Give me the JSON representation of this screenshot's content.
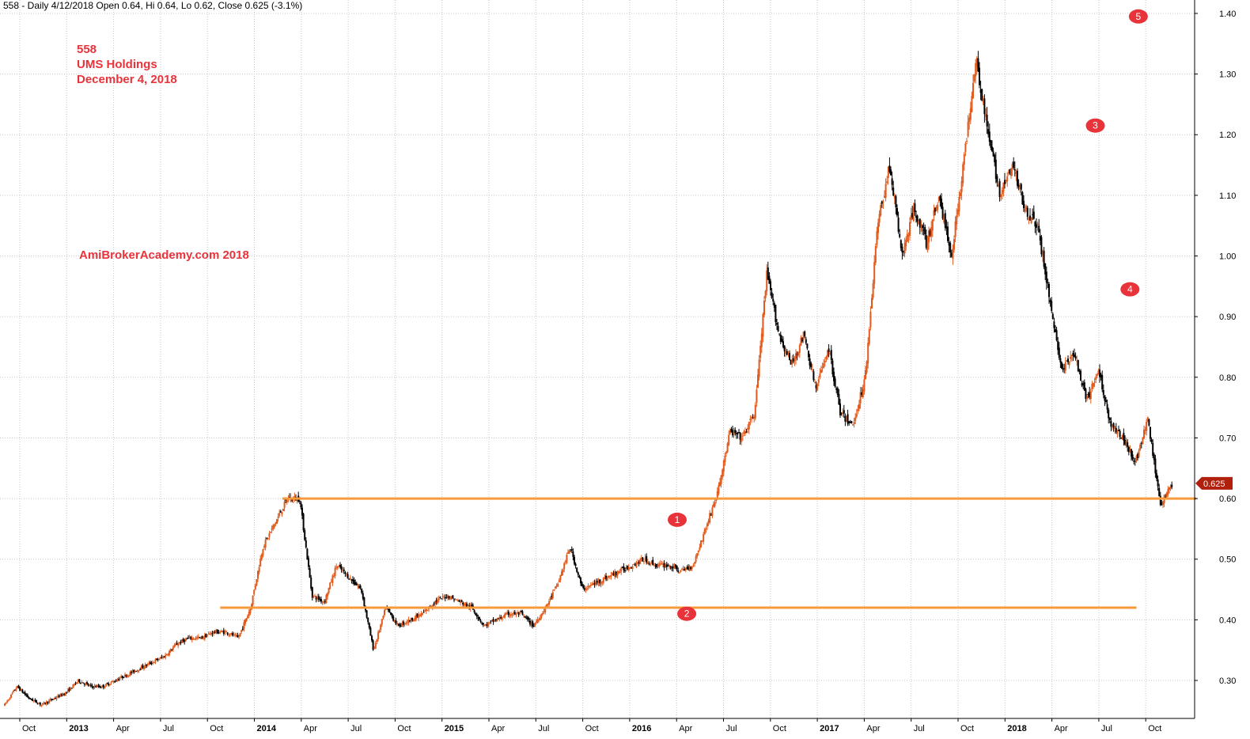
{
  "header": "558 - Daily 4/12/2018 Open 0.64, Hi 0.64, Lo 0.62, Close 0.625 (-3.1%)",
  "annotations": {
    "ticker": "558",
    "company": "UMS Holdings",
    "date": "December 4, 2018",
    "watermark": "AmiBrokerAcademy.com 2018"
  },
  "colors": {
    "up_candle": "#e25a1c",
    "down_candle": "#000000",
    "support_line": "#f79a3c",
    "marker": "#e8333b",
    "last_price_tag": "#b0200c",
    "grid": "#c8c8c8"
  },
  "chart_data": {
    "type": "candlestick",
    "grid": true,
    "ylim": [
      0.23,
      1.42
    ],
    "yticks": [
      "0.30",
      "0.40",
      "0.50",
      "0.60",
      "0.70",
      "0.80",
      "0.90",
      "1.00",
      "1.10",
      "1.20",
      "1.30",
      "1.40"
    ],
    "x_ticks": [
      {
        "label": "Oct",
        "year": false
      },
      {
        "label": "2013",
        "year": true
      },
      {
        "label": "Apr",
        "year": false
      },
      {
        "label": "Jul",
        "year": false
      },
      {
        "label": "Oct",
        "year": false
      },
      {
        "label": "2014",
        "year": true
      },
      {
        "label": "Apr",
        "year": false
      },
      {
        "label": "Jul",
        "year": false
      },
      {
        "label": "Oct",
        "year": false
      },
      {
        "label": "2015",
        "year": true
      },
      {
        "label": "Apr",
        "year": false
      },
      {
        "label": "Jul",
        "year": false
      },
      {
        "label": "Oct",
        "year": false
      },
      {
        "label": "2016",
        "year": true
      },
      {
        "label": "Apr",
        "year": false
      },
      {
        "label": "Jul",
        "year": false
      },
      {
        "label": "Oct",
        "year": false
      },
      {
        "label": "2017",
        "year": true
      },
      {
        "label": "Apr",
        "year": false
      },
      {
        "label": "Jul",
        "year": false
      },
      {
        "label": "Oct",
        "year": false
      },
      {
        "label": "2018",
        "year": true
      },
      {
        "label": "Apr",
        "year": false
      },
      {
        "label": "Jul",
        "year": false
      },
      {
        "label": "Oct",
        "year": false
      }
    ],
    "price_path": [
      [
        0,
        0.26
      ],
      [
        1,
        0.29
      ],
      [
        2,
        0.27
      ],
      [
        3,
        0.26
      ],
      [
        4,
        0.27
      ],
      [
        5,
        0.28
      ],
      [
        6,
        0.3
      ],
      [
        7,
        0.29
      ],
      [
        8,
        0.29
      ],
      [
        9,
        0.3
      ],
      [
        10,
        0.31
      ],
      [
        11,
        0.32
      ],
      [
        12,
        0.33
      ],
      [
        13,
        0.34
      ],
      [
        14,
        0.36
      ],
      [
        15,
        0.37
      ],
      [
        16,
        0.37
      ],
      [
        17,
        0.38
      ],
      [
        18,
        0.38
      ],
      [
        19,
        0.37
      ],
      [
        20,
        0.42
      ],
      [
        21,
        0.52
      ],
      [
        22,
        0.56
      ],
      [
        23,
        0.6
      ],
      [
        24,
        0.6
      ],
      [
        25,
        0.44
      ],
      [
        26,
        0.43
      ],
      [
        27,
        0.49
      ],
      [
        28,
        0.47
      ],
      [
        29,
        0.45
      ],
      [
        30,
        0.35
      ],
      [
        31,
        0.42
      ],
      [
        32,
        0.39
      ],
      [
        33,
        0.4
      ],
      [
        34,
        0.41
      ],
      [
        35,
        0.43
      ],
      [
        36,
        0.44
      ],
      [
        37,
        0.43
      ],
      [
        38,
        0.42
      ],
      [
        39,
        0.39
      ],
      [
        40,
        0.4
      ],
      [
        41,
        0.41
      ],
      [
        42,
        0.41
      ],
      [
        43,
        0.39
      ],
      [
        44,
        0.42
      ],
      [
        45,
        0.46
      ],
      [
        46,
        0.52
      ],
      [
        47,
        0.45
      ],
      [
        48,
        0.46
      ],
      [
        49,
        0.47
      ],
      [
        50,
        0.48
      ],
      [
        51,
        0.49
      ],
      [
        52,
        0.5
      ],
      [
        53,
        0.49
      ],
      [
        54,
        0.49
      ],
      [
        55,
        0.48
      ],
      [
        56,
        0.49
      ],
      [
        57,
        0.55
      ],
      [
        58,
        0.61
      ],
      [
        59,
        0.71
      ],
      [
        60,
        0.7
      ],
      [
        61,
        0.74
      ],
      [
        62,
        0.97
      ],
      [
        63,
        0.87
      ],
      [
        64,
        0.82
      ],
      [
        65,
        0.87
      ],
      [
        66,
        0.78
      ],
      [
        67,
        0.85
      ],
      [
        68,
        0.74
      ],
      [
        69,
        0.72
      ],
      [
        70,
        0.8
      ],
      [
        71,
        1.05
      ],
      [
        72,
        1.15
      ],
      [
        73,
        1.0
      ],
      [
        74,
        1.08
      ],
      [
        75,
        1.02
      ],
      [
        76,
        1.1
      ],
      [
        77,
        1.0
      ],
      [
        78,
        1.15
      ],
      [
        79,
        1.33
      ],
      [
        80,
        1.2
      ],
      [
        81,
        1.1
      ],
      [
        82,
        1.15
      ],
      [
        83,
        1.08
      ],
      [
        84,
        1.05
      ],
      [
        85,
        0.93
      ],
      [
        86,
        0.81
      ],
      [
        87,
        0.84
      ],
      [
        88,
        0.76
      ],
      [
        89,
        0.81
      ],
      [
        90,
        0.72
      ],
      [
        91,
        0.7
      ],
      [
        92,
        0.66
      ],
      [
        93,
        0.73
      ],
      [
        94,
        0.59
      ],
      [
        95,
        0.625
      ]
    ],
    "last_price": "0.625",
    "support_levels": [
      {
        "price": 0.6,
        "x_start": 0.233,
        "x_end": 1.0
      },
      {
        "price": 0.42,
        "x_start": 0.181,
        "x_end": 0.95
      }
    ],
    "wave_markers": [
      {
        "label": "1",
        "price": 0.565,
        "x_frac": 0.5
      },
      {
        "label": "2",
        "price": 0.41,
        "x_frac": 0.508
      },
      {
        "label": "3",
        "price": 1.215,
        "x_frac": 0.85
      },
      {
        "label": "4",
        "price": 0.945,
        "x_frac": 0.879
      },
      {
        "label": "5",
        "price": 1.395,
        "x_frac": 0.886
      }
    ]
  }
}
